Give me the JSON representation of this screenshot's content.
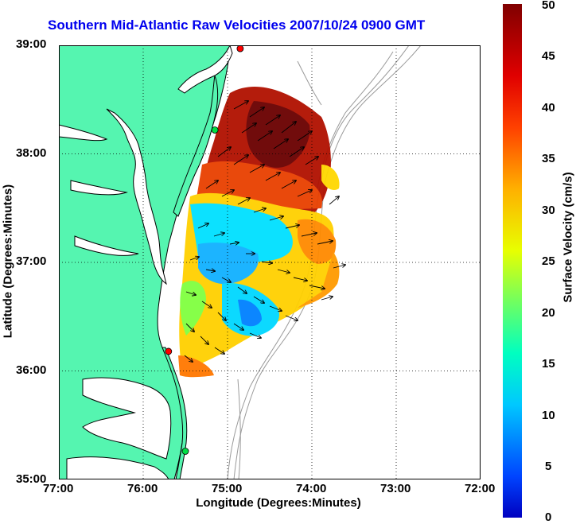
{
  "title": "Southern Mid-Atlantic Raw Velocities 2007/10/24 0900 GMT",
  "xlabel": "Longitude (Degrees:Minutes)",
  "ylabel": "Latitude (Degrees:Minutes)",
  "x_ticks": [
    "77:00",
    "76:00",
    "75:00",
    "74:00",
    "73:00",
    "72:00"
  ],
  "y_ticks": [
    "39:00",
    "38:00",
    "37:00",
    "36:00",
    "35:00"
  ],
  "colorbar": {
    "label": "Surface Velocity (cm/s)",
    "ticks": [
      "50",
      "45",
      "40",
      "35",
      "30",
      "25",
      "20",
      "15",
      "10",
      "5",
      "0"
    ],
    "min": 0,
    "max": 50
  },
  "colors": {
    "land": "#55f5b0",
    "water": "#ffffff",
    "title": "#0000ee",
    "grid": "#000000",
    "bathymetry": "#999999",
    "station_red": "#ff0000",
    "station_green": "#00dd44"
  },
  "map_extent": {
    "lon_min": -77,
    "lon_max": -72,
    "lat_min": 35,
    "lat_max": 39
  },
  "stations": [
    {
      "color": "red",
      "lon": -74.85,
      "lat": 38.97
    },
    {
      "color": "green",
      "lon": -75.15,
      "lat": 38.22
    },
    {
      "color": "red",
      "lon": -75.7,
      "lat": 36.18
    },
    {
      "color": "green",
      "lon": -75.5,
      "lat": 35.26
    }
  ]
}
